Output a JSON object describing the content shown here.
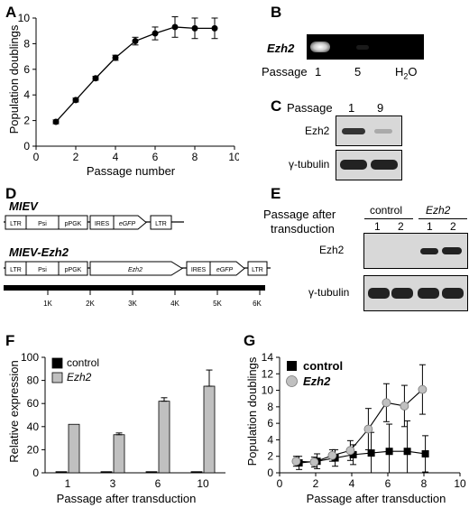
{
  "panels": {
    "A": {
      "label": "A"
    },
    "B": {
      "label": "B",
      "gene": "Ezh2",
      "row_label": "Passage",
      "lanes": [
        "1",
        "5",
        "H2O"
      ]
    },
    "C": {
      "label": "C",
      "header": "Passage",
      "lanes": [
        "1",
        "9"
      ],
      "rows": [
        "Ezh2",
        "γ-tubulin"
      ]
    },
    "D": {
      "label": "D",
      "constructs": [
        {
          "name": "MIEV",
          "elements": [
            "LTR",
            "Psi",
            "pPGK",
            "IRES",
            "eGFP",
            "LTR"
          ]
        },
        {
          "name": "MIEV-Ezh2",
          "elements": [
            "LTR",
            "Psi",
            "pPGK",
            "Ezh2",
            "IRES",
            "eGFP",
            "LTR"
          ]
        }
      ],
      "scale_ticks": [
        "1K",
        "2K",
        "3K",
        "4K",
        "5K",
        "6K"
      ]
    },
    "E": {
      "label": "E",
      "title_line1": "Passage after",
      "title_line2": "transduction",
      "groups": [
        "control",
        "Ezh2"
      ],
      "lanes": [
        "1",
        "2",
        "1",
        "2"
      ],
      "rows": [
        "Ezh2",
        "γ-tubulin"
      ]
    },
    "F": {
      "label": "F"
    },
    "G": {
      "label": "G"
    }
  },
  "chart_data": [
    {
      "panel": "A",
      "type": "line",
      "xlabel": "Passage number",
      "ylabel": "Population doublings",
      "xlim": [
        0,
        10
      ],
      "ylim": [
        0,
        10
      ],
      "xticks": [
        0,
        2,
        4,
        6,
        8,
        10
      ],
      "yticks": [
        0,
        2,
        4,
        6,
        8,
        10
      ],
      "x": [
        1,
        2,
        3,
        4,
        5,
        6,
        7,
        8,
        9
      ],
      "series": [
        {
          "values": [
            1.9,
            3.6,
            5.3,
            6.9,
            8.2,
            8.8,
            9.3,
            9.2,
            9.2
          ],
          "errors": [
            0.15,
            0.15,
            0.15,
            0.2,
            0.3,
            0.5,
            0.8,
            0.8,
            0.8
          ]
        }
      ]
    },
    {
      "panel": "F",
      "type": "bar",
      "xlabel": "Passage after transduction",
      "ylabel": "Relative expression",
      "ylim": [
        0,
        100
      ],
      "yticks": [
        0,
        20,
        40,
        60,
        80,
        100
      ],
      "categories": [
        "1",
        "3",
        "6",
        "10"
      ],
      "legend": "top-left",
      "series": [
        {
          "name": "control",
          "color": "#000000",
          "values": [
            1,
            1,
            1,
            1
          ],
          "errors": [
            0,
            0,
            0,
            0
          ]
        },
        {
          "name": "Ezh2",
          "color": "#c0c0c0",
          "values": [
            42,
            33,
            62,
            75
          ],
          "errors": [
            0,
            1.5,
            3,
            14
          ]
        }
      ]
    },
    {
      "panel": "G",
      "type": "line",
      "xlabel": "Passage after transduction",
      "ylabel": "Population doublings",
      "xlim": [
        0,
        10
      ],
      "ylim": [
        0,
        14
      ],
      "xticks": [
        0,
        2,
        4,
        6,
        8,
        10
      ],
      "yticks": [
        0,
        2,
        4,
        6,
        8,
        10,
        12,
        14
      ],
      "legend": "top-left",
      "series": [
        {
          "name": "control",
          "marker": "square",
          "color": "#000000",
          "x": [
            1,
            2,
            3,
            4,
            5,
            6,
            7,
            8
          ],
          "values": [
            1.2,
            1.4,
            1.8,
            2.2,
            2.4,
            2.6,
            2.6,
            2.3
          ],
          "errors": [
            0.8,
            0.9,
            1.0,
            1.2,
            2.5,
            3.3,
            3.7,
            2.2
          ]
        },
        {
          "name": "Ezh2",
          "marker": "circle",
          "color": "#c0c0c0",
          "x": [
            1,
            2,
            3,
            4,
            5,
            6,
            7,
            8
          ],
          "values": [
            1.4,
            1.3,
            2.1,
            2.7,
            5.3,
            8.5,
            8.1,
            10.1
          ],
          "errors": [
            0.6,
            0.6,
            0.7,
            1.2,
            2.5,
            2.3,
            2.5,
            3.0
          ]
        }
      ]
    }
  ]
}
